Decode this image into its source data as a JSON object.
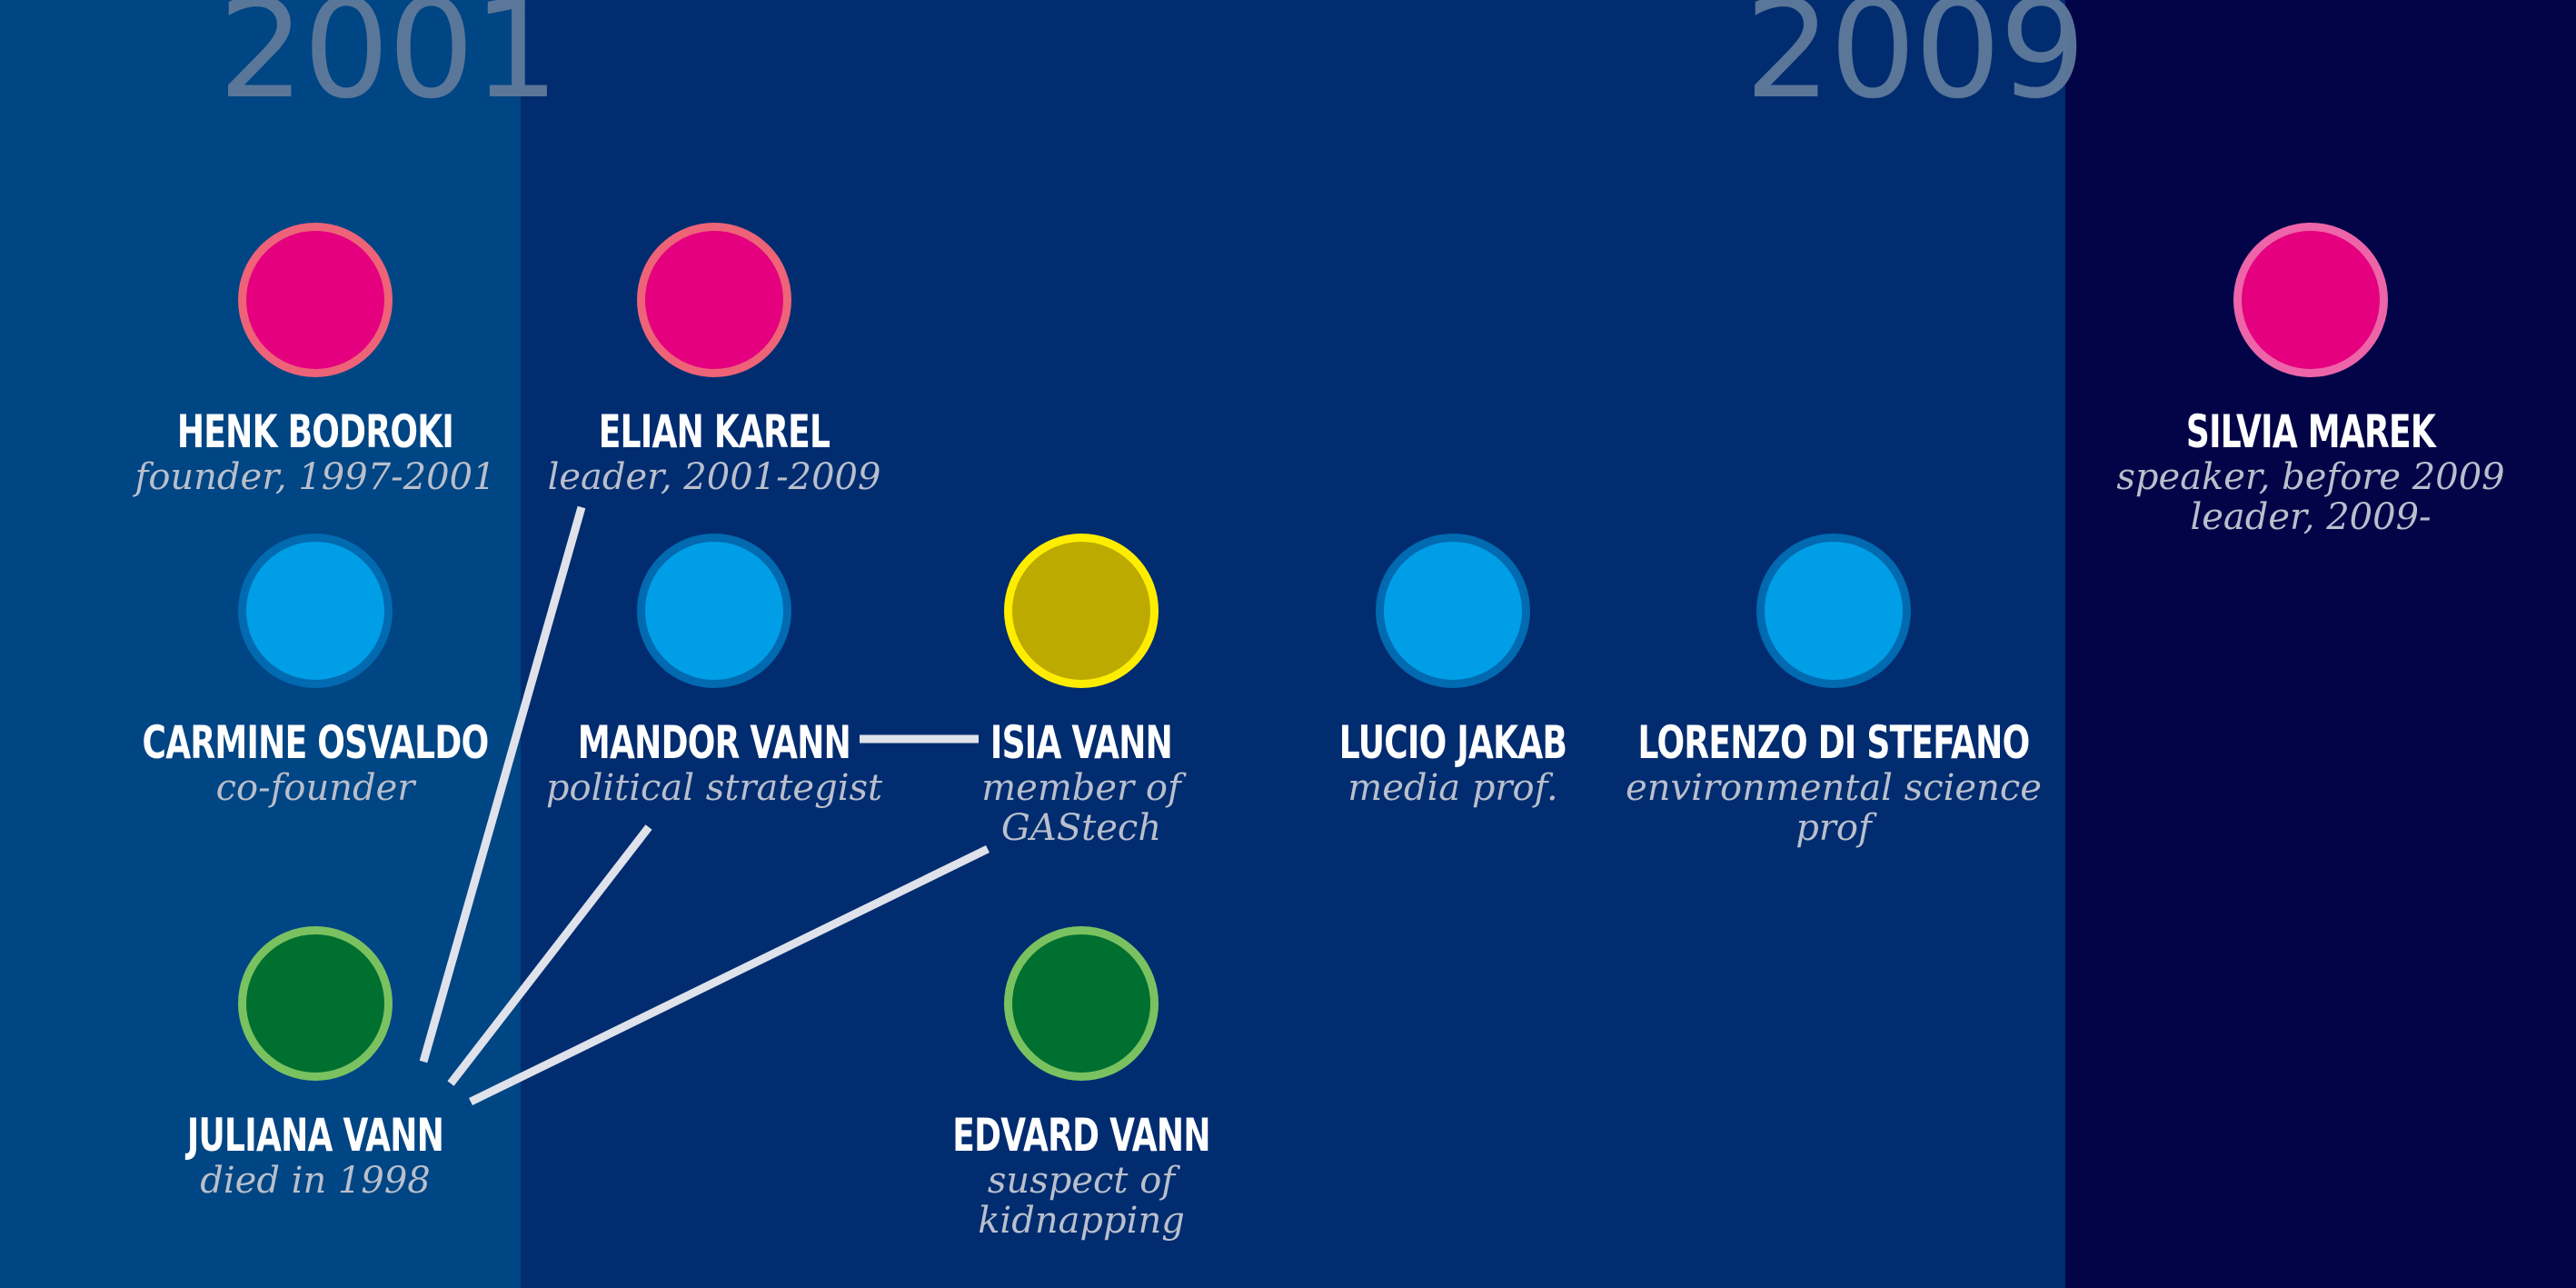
{
  "years": {
    "left": "2001",
    "right": "2009"
  },
  "colors": {
    "band_left": "#004584",
    "band_mid": "#012c70",
    "band_right": "#030448",
    "pink_fill": "#e4007f",
    "blue_fill": "#009ee6",
    "yellow_fill": "#bcaa00",
    "green_fill": "#007030",
    "link": "#dfe2ea"
  },
  "people": [
    {
      "id": "henk",
      "name": "HENK BODROKI",
      "role": [
        "founder, 1997-2001"
      ],
      "color": "pink"
    },
    {
      "id": "elian",
      "name": "ELIAN KAREL",
      "role": [
        "leader, 2001-2009"
      ],
      "color": "pink"
    },
    {
      "id": "silvia",
      "name": "SILVIA MAREK",
      "role": [
        "speaker, before 2009",
        "leader, 2009-"
      ],
      "color": "pink"
    },
    {
      "id": "carmine",
      "name": "CARMINE OSVALDO",
      "role": [
        "co-founder"
      ],
      "color": "blue"
    },
    {
      "id": "mandor",
      "name": "MANDOR VANN",
      "role": [
        "political strategist"
      ],
      "color": "blue"
    },
    {
      "id": "isia",
      "name": "ISIA VANN",
      "role": [
        "member of",
        "GAStech"
      ],
      "color": "yellow"
    },
    {
      "id": "lucio",
      "name": "LUCIO JAKAB",
      "role": [
        "media prof."
      ],
      "color": "blue"
    },
    {
      "id": "lorenzo",
      "name": "LORENZO DI STEFANO",
      "role": [
        "environmental science",
        "prof"
      ],
      "color": "blue"
    },
    {
      "id": "juliana",
      "name": "JULIANA VANN",
      "role": [
        "died in 1998"
      ],
      "color": "green"
    },
    {
      "id": "edvard",
      "name": "EDVARD VANN",
      "role": [
        "suspect of",
        "kidnapping"
      ],
      "color": "green"
    }
  ],
  "links": [
    {
      "from": "elian",
      "to": "juliana"
    },
    {
      "from": "mandor",
      "to": "juliana"
    },
    {
      "from": "isia",
      "to": "juliana"
    },
    {
      "from": "mandor",
      "to": "isia"
    }
  ]
}
